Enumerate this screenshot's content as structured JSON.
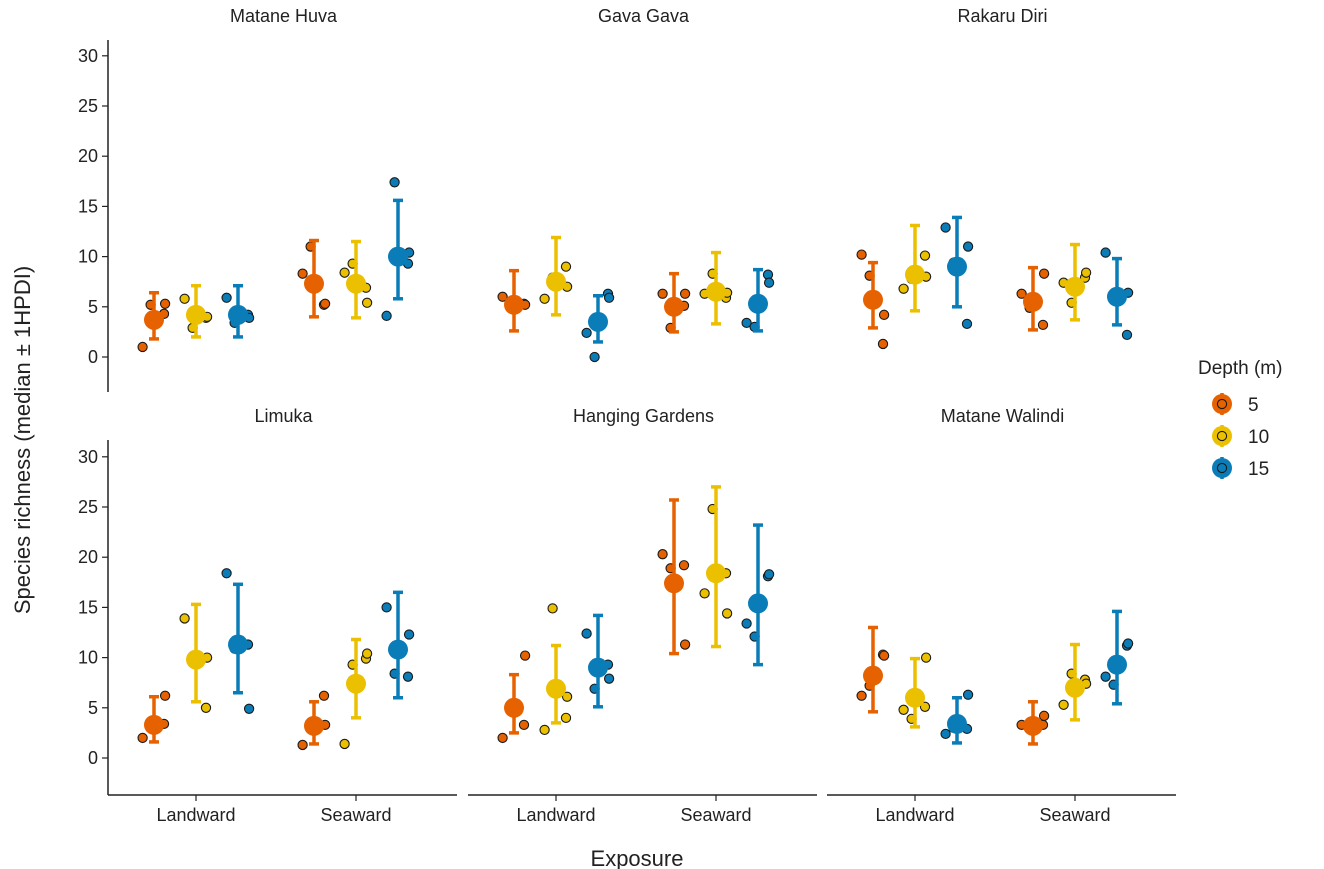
{
  "chart_data": {
    "type": "scatter",
    "title": "",
    "xlabel": "Exposure",
    "ylabel": "Species richness (median ± 1HPDI)",
    "ylim": [
      -3.5,
      31.5
    ],
    "yticks": [
      0,
      5,
      10,
      15,
      20,
      25,
      30
    ],
    "categories": [
      "Landward",
      "Seaward"
    ],
    "legend": {
      "title": "Depth (m)",
      "position": "right",
      "entries": [
        {
          "label": "5",
          "color": "#E66100"
        },
        {
          "label": "10",
          "color": "#EBC000"
        },
        {
          "label": "15",
          "color": "#0A7DB8"
        }
      ]
    },
    "series_colors": {
      "5": "#E66100",
      "10": "#EBC000",
      "15": "#0A7DB8"
    },
    "panels": [
      {
        "name": "Matane Huva",
        "groups": [
          {
            "exposure": "Landward",
            "depth": "5",
            "median": 3.7,
            "lower": 1.8,
            "upper": 6.4,
            "points": [
              1,
              5.2,
              4.3,
              5.3
            ]
          },
          {
            "exposure": "Landward",
            "depth": "10",
            "median": 4.2,
            "lower": 2.0,
            "upper": 7.1,
            "points": [
              5.8,
              2.9,
              3.9,
              4.0
            ]
          },
          {
            "exposure": "Landward",
            "depth": "15",
            "median": 4.2,
            "lower": 2.0,
            "upper": 7.1,
            "points": [
              5.9,
              3.4,
              4.2,
              3.9
            ]
          },
          {
            "exposure": "Seaward",
            "depth": "5",
            "median": 7.3,
            "lower": 4.0,
            "upper": 11.6,
            "points": [
              8.3,
              11.0,
              5.2,
              5.3
            ]
          },
          {
            "exposure": "Seaward",
            "depth": "10",
            "median": 7.3,
            "lower": 3.9,
            "upper": 11.5,
            "points": [
              8.4,
              9.3,
              6.9,
              5.4
            ]
          },
          {
            "exposure": "Seaward",
            "depth": "15",
            "median": 10.0,
            "lower": 5.8,
            "upper": 15.6,
            "points": [
              4.1,
              17.4,
              9.3,
              10.4
            ]
          }
        ]
      },
      {
        "name": "Gava Gava",
        "groups": [
          {
            "exposure": "Landward",
            "depth": "5",
            "median": 5.2,
            "lower": 2.6,
            "upper": 8.6,
            "points": [
              6.0,
              5.1,
              5.3,
              5.2
            ]
          },
          {
            "exposure": "Landward",
            "depth": "10",
            "median": 7.5,
            "lower": 4.2,
            "upper": 11.9,
            "points": [
              5.8,
              7.9,
              9.0,
              7.0
            ]
          },
          {
            "exposure": "Landward",
            "depth": "15",
            "median": 3.5,
            "lower": 1.5,
            "upper": 6.1,
            "points": [
              2.4,
              0,
              6.3,
              5.9
            ]
          },
          {
            "exposure": "Seaward",
            "depth": "5",
            "median": 5.0,
            "lower": 2.5,
            "upper": 8.3,
            "points": [
              6.3,
              2.9,
              5.1,
              6.3
            ]
          },
          {
            "exposure": "Seaward",
            "depth": "10",
            "median": 6.5,
            "lower": 3.3,
            "upper": 10.4,
            "points": [
              6.3,
              8.3,
              5.9,
              6.4
            ]
          },
          {
            "exposure": "Seaward",
            "depth": "15",
            "median": 5.3,
            "lower": 2.6,
            "upper": 8.7,
            "points": [
              3.4,
              3.0,
              8.2,
              7.4
            ]
          }
        ]
      },
      {
        "name": "Rakaru Diri",
        "groups": [
          {
            "exposure": "Landward",
            "depth": "5",
            "median": 5.7,
            "lower": 2.9,
            "upper": 9.4,
            "points": [
              10.2,
              8.1,
              1.3,
              4.2
            ]
          },
          {
            "exposure": "Landward",
            "depth": "10",
            "median": 8.2,
            "lower": 4.6,
            "upper": 13.1,
            "points": [
              6.8,
              7.8,
              10.1,
              8.0
            ]
          },
          {
            "exposure": "Landward",
            "depth": "15",
            "median": 9.0,
            "lower": 5.0,
            "upper": 13.9,
            "points": [
              12.9,
              9.4,
              3.3,
              11.0
            ]
          },
          {
            "exposure": "Seaward",
            "depth": "5",
            "median": 5.5,
            "lower": 2.7,
            "upper": 8.9,
            "points": [
              6.3,
              4.9,
              3.2,
              8.3
            ]
          },
          {
            "exposure": "Seaward",
            "depth": "10",
            "median": 7.0,
            "lower": 3.7,
            "upper": 11.2,
            "points": [
              7.4,
              5.4,
              7.9,
              8.4
            ]
          },
          {
            "exposure": "Seaward",
            "depth": "15",
            "median": 6.0,
            "lower": 3.2,
            "upper": 9.8,
            "points": [
              10.4,
              6.2,
              2.2,
              6.4
            ]
          }
        ]
      },
      {
        "name": "Limuka",
        "groups": [
          {
            "exposure": "Landward",
            "depth": "5",
            "median": 3.3,
            "lower": 1.6,
            "upper": 6.1,
            "points": [
              2.0,
              3.2,
              3.4,
              6.2
            ]
          },
          {
            "exposure": "Landward",
            "depth": "10",
            "median": 9.8,
            "lower": 5.6,
            "upper": 15.3,
            "points": [
              13.9,
              9.8,
              5.0,
              10.0
            ]
          },
          {
            "exposure": "Landward",
            "depth": "15",
            "median": 11.3,
            "lower": 6.5,
            "upper": 17.3,
            "points": [
              18.4,
              10.9,
              11.3,
              4.9
            ]
          },
          {
            "exposure": "Seaward",
            "depth": "5",
            "median": 3.2,
            "lower": 1.4,
            "upper": 5.6,
            "points": [
              1.3,
              2.9,
              6.2,
              3.3
            ]
          },
          {
            "exposure": "Seaward",
            "depth": "10",
            "median": 7.4,
            "lower": 4.0,
            "upper": 11.8,
            "points": [
              1.4,
              9.3,
              9.9,
              10.4
            ]
          },
          {
            "exposure": "Seaward",
            "depth": "15",
            "median": 10.8,
            "lower": 6.0,
            "upper": 16.5,
            "points": [
              15.0,
              8.4,
              8.1,
              12.3
            ]
          }
        ]
      },
      {
        "name": "Hanging Gardens",
        "groups": [
          {
            "exposure": "Landward",
            "depth": "5",
            "median": 5.0,
            "lower": 2.5,
            "upper": 8.3,
            "points": [
              2.0,
              5.1,
              3.3,
              10.2
            ]
          },
          {
            "exposure": "Landward",
            "depth": "10",
            "median": 6.9,
            "lower": 3.5,
            "upper": 11.2,
            "points": [
              2.8,
              14.9,
              4.0,
              6.1
            ]
          },
          {
            "exposure": "Landward",
            "depth": "15",
            "median": 9.0,
            "lower": 5.1,
            "upper": 14.2,
            "points": [
              12.4,
              6.9,
              9.3,
              7.9
            ]
          },
          {
            "exposure": "Seaward",
            "depth": "5",
            "median": 17.4,
            "lower": 10.4,
            "upper": 25.7,
            "points": [
              20.3,
              18.9,
              19.2,
              11.3
            ]
          },
          {
            "exposure": "Seaward",
            "depth": "10",
            "median": 18.4,
            "lower": 11.1,
            "upper": 27.0,
            "points": [
              16.4,
              24.8,
              18.4,
              14.4
            ]
          },
          {
            "exposure": "Seaward",
            "depth": "15",
            "median": 15.4,
            "lower": 9.3,
            "upper": 23.2,
            "points": [
              13.4,
              12.1,
              18.1,
              18.3
            ]
          }
        ]
      },
      {
        "name": "Matane Walindi",
        "groups": [
          {
            "exposure": "Landward",
            "depth": "5",
            "median": 8.2,
            "lower": 4.6,
            "upper": 13.0,
            "points": [
              6.2,
              7.2,
              10.3,
              10.2
            ]
          },
          {
            "exposure": "Landward",
            "depth": "10",
            "median": 6.0,
            "lower": 3.1,
            "upper": 9.9,
            "points": [
              4.8,
              3.9,
              5.1,
              10.0
            ]
          },
          {
            "exposure": "Landward",
            "depth": "15",
            "median": 3.4,
            "lower": 1.5,
            "upper": 6.0,
            "points": [
              2.4,
              3.0,
              2.9,
              6.3
            ]
          },
          {
            "exposure": "Seaward",
            "depth": "5",
            "median": 3.2,
            "lower": 1.4,
            "upper": 5.6,
            "points": [
              3.3,
              2.9,
              3.3,
              4.2
            ]
          },
          {
            "exposure": "Seaward",
            "depth": "10",
            "median": 7.0,
            "lower": 3.8,
            "upper": 11.3,
            "points": [
              5.3,
              8.4,
              7.8,
              7.4
            ]
          },
          {
            "exposure": "Seaward",
            "depth": "15",
            "median": 9.3,
            "lower": 5.4,
            "upper": 14.6,
            "points": [
              8.1,
              7.3,
              11.2,
              11.4
            ]
          }
        ]
      }
    ]
  }
}
